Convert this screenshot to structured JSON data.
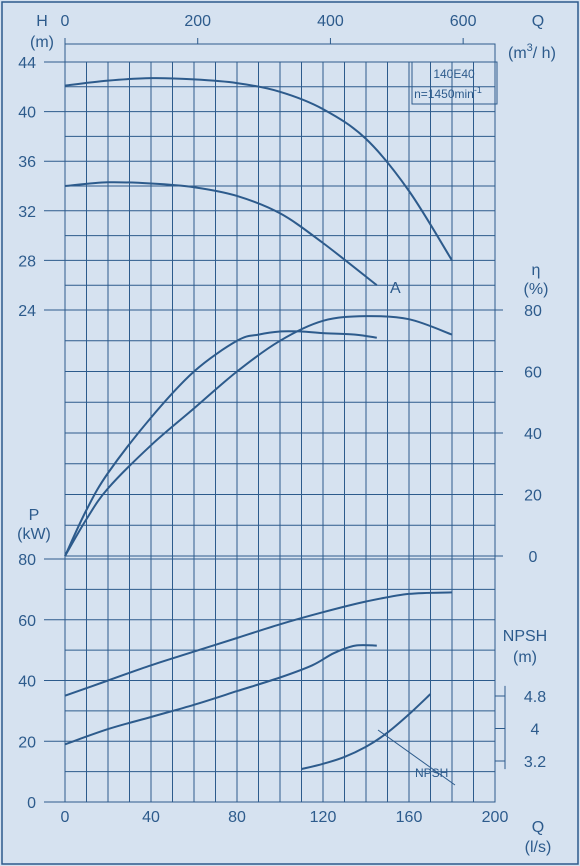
{
  "chart_data": {
    "type": "line",
    "model": "140E40",
    "speed_label": "n=1450min",
    "speed_exp": "-1",
    "axes": {
      "H": {
        "label": "H",
        "unit": "(m)",
        "ticks": [
          24,
          28,
          32,
          36,
          40,
          44
        ],
        "range": [
          24,
          44
        ]
      },
      "Q_top": {
        "label": "Q",
        "unit": "(m",
        "unit_exp": "3",
        "unit_tail": "/ h)",
        "ticks": [
          0,
          200,
          400,
          600
        ],
        "range": [
          0,
          648
        ]
      },
      "eta": {
        "label": "η",
        "unit": "(%)",
        "ticks": [
          0,
          20,
          40,
          60,
          80
        ],
        "range": [
          0,
          80
        ]
      },
      "P": {
        "label": "P",
        "unit": "(kW)",
        "ticks": [
          0,
          20,
          40,
          60,
          80
        ],
        "range": [
          0,
          80
        ]
      },
      "NPSH": {
        "label": "NPSH",
        "unit": "(m)",
        "ticks": [
          3.2,
          4,
          4.8
        ],
        "range": [
          3.2,
          4.8
        ]
      },
      "Q_bottom": {
        "label": "Q",
        "unit": "(l/s)",
        "ticks": [
          0,
          40,
          80,
          120,
          160,
          200
        ],
        "range": [
          0,
          200
        ]
      }
    },
    "curve_label_A": "A",
    "npsh_label": "NPSH",
    "series": [
      {
        "name": "",
        "quantity": "H",
        "x": [
          0,
          20,
          40,
          60,
          80,
          100,
          120,
          140,
          160,
          180
        ],
        "y": [
          42.1,
          42.5,
          42.7,
          42.6,
          42.3,
          41.6,
          40.2,
          37.8,
          33.6,
          28.0
        ]
      },
      {
        "name": "A",
        "quantity": "H",
        "x": [
          0,
          20,
          40,
          60,
          80,
          100,
          120,
          145
        ],
        "y": [
          34.0,
          34.3,
          34.2,
          33.9,
          33.2,
          31.8,
          29.4,
          26.0
        ]
      },
      {
        "name": "A",
        "quantity": "eta",
        "x": [
          0,
          10,
          20,
          40,
          60,
          80,
          90,
          100,
          110,
          120,
          135,
          145
        ],
        "y": [
          0,
          15,
          27,
          45,
          60,
          70,
          72,
          73,
          73,
          72.5,
          72,
          71
        ]
      },
      {
        "name": "",
        "quantity": "eta",
        "x": [
          0,
          10,
          20,
          40,
          60,
          80,
          100,
          120,
          140,
          160,
          180
        ],
        "y": [
          0,
          12,
          22,
          36,
          48,
          60,
          70,
          76.5,
          78,
          77,
          72
        ]
      },
      {
        "name": "",
        "quantity": "P",
        "x": [
          0,
          20,
          40,
          60,
          80,
          100,
          120,
          140,
          160,
          180
        ],
        "y": [
          35,
          40,
          45,
          49.5,
          54,
          58.5,
          62.5,
          66,
          68.5,
          69
        ]
      },
      {
        "name": "A",
        "quantity": "P",
        "x": [
          0,
          20,
          40,
          60,
          80,
          100,
          115,
          125,
          135,
          145
        ],
        "y": [
          19,
          24,
          28,
          32,
          36.5,
          41,
          45,
          49,
          51.5,
          51.5
        ]
      },
      {
        "name": "NPSH",
        "quantity": "NPSH",
        "x": [
          110,
          120,
          130,
          140,
          150,
          160,
          170
        ],
        "y": [
          3.0,
          3.13,
          3.3,
          3.55,
          3.9,
          4.35,
          4.85
        ]
      }
    ]
  }
}
